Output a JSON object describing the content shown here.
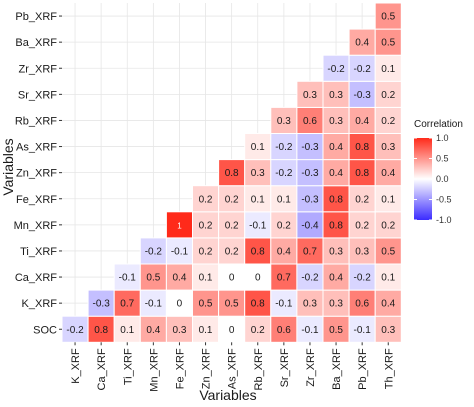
{
  "chart_data": {
    "type": "heatmap",
    "title": "",
    "xlabel": "Variables",
    "ylabel": "Variables",
    "x_categories": [
      "K_XRF",
      "Ca_XRF",
      "Ti_XRF",
      "Mn_XRF",
      "Fe_XRF",
      "Zn_XRF",
      "As_XRF",
      "Rb_XRF",
      "Sr_XRF",
      "Zr_XRF",
      "Ba_XRF",
      "Pb_XRF",
      "Th_XRF"
    ],
    "y_categories": [
      "SOC",
      "K_XRF",
      "Ca_XRF",
      "Ti_XRF",
      "Mn_XRF",
      "Fe_XRF",
      "Zn_XRF",
      "As_XRF",
      "Rb_XRF",
      "Sr_XRF",
      "Zr_XRF",
      "Ba_XRF",
      "Pb_XRF"
    ],
    "cells": [
      {
        "row": "SOC",
        "values": [
          -0.2,
          0.8,
          0.1,
          0.4,
          0.3,
          0.1,
          0.0,
          0.2,
          0.6,
          -0.1,
          0.5,
          -0.1,
          0.3
        ]
      },
      {
        "row": "K_XRF",
        "values": [
          null,
          -0.3,
          0.7,
          -0.1,
          0,
          0.5,
          0.5,
          0.8,
          -0.1,
          0.3,
          0.3,
          0.6,
          0.4
        ]
      },
      {
        "row": "Ca_XRF",
        "values": [
          null,
          null,
          -0.1,
          0.5,
          0.4,
          0.1,
          0,
          0,
          0.7,
          -0.2,
          0.4,
          -0.2,
          0.1
        ]
      },
      {
        "row": "Ti_XRF",
        "values": [
          null,
          null,
          null,
          -0.2,
          -0.1,
          0.2,
          0.2,
          0.8,
          0.4,
          0.7,
          0.3,
          0.3,
          0.5
        ]
      },
      {
        "row": "Mn_XRF",
        "values": [
          null,
          null,
          null,
          null,
          1,
          0.2,
          0.2,
          -0.1,
          0.2,
          -0.4,
          0.8,
          0.2,
          0.2
        ]
      },
      {
        "row": "Fe_XRF",
        "values": [
          null,
          null,
          null,
          null,
          null,
          0.2,
          0.2,
          0.1,
          0.1,
          -0.3,
          0.8,
          0.2,
          0.1
        ]
      },
      {
        "row": "Zn_XRF",
        "values": [
          null,
          null,
          null,
          null,
          null,
          null,
          0.8,
          0.3,
          -0.2,
          -0.3,
          0.4,
          0.8,
          0.4
        ]
      },
      {
        "row": "As_XRF",
        "values": [
          null,
          null,
          null,
          null,
          null,
          null,
          null,
          0.1,
          -0.2,
          -0.3,
          0.4,
          0.8,
          0.3
        ]
      },
      {
        "row": "Rb_XRF",
        "values": [
          null,
          null,
          null,
          null,
          null,
          null,
          null,
          null,
          0.3,
          0.6,
          0.3,
          0.4,
          0.2
        ]
      },
      {
        "row": "Sr_XRF",
        "values": [
          null,
          null,
          null,
          null,
          null,
          null,
          null,
          null,
          null,
          0.3,
          0.3,
          -0.3,
          0.2
        ]
      },
      {
        "row": "Zr_XRF",
        "values": [
          null,
          null,
          null,
          null,
          null,
          null,
          null,
          null,
          null,
          null,
          -0.2,
          -0.2,
          0.1
        ]
      },
      {
        "row": "Ba_XRF",
        "values": [
          null,
          null,
          null,
          null,
          null,
          null,
          null,
          null,
          null,
          null,
          null,
          0.4,
          0.5
        ]
      },
      {
        "row": "Pb_XRF",
        "values": [
          null,
          null,
          null,
          null,
          null,
          null,
          null,
          null,
          null,
          null,
          null,
          null,
          0.5
        ]
      }
    ],
    "legend": {
      "title": "Correlation",
      "ticks": [
        1.0,
        0.5,
        0.0,
        -0.5,
        -1.0
      ],
      "range": [
        -1,
        1
      ],
      "placement": "right"
    },
    "colors": {
      "low": "#3b2bff",
      "mid": "#ffffff",
      "high": "#ff2a1a"
    },
    "grid": true
  }
}
